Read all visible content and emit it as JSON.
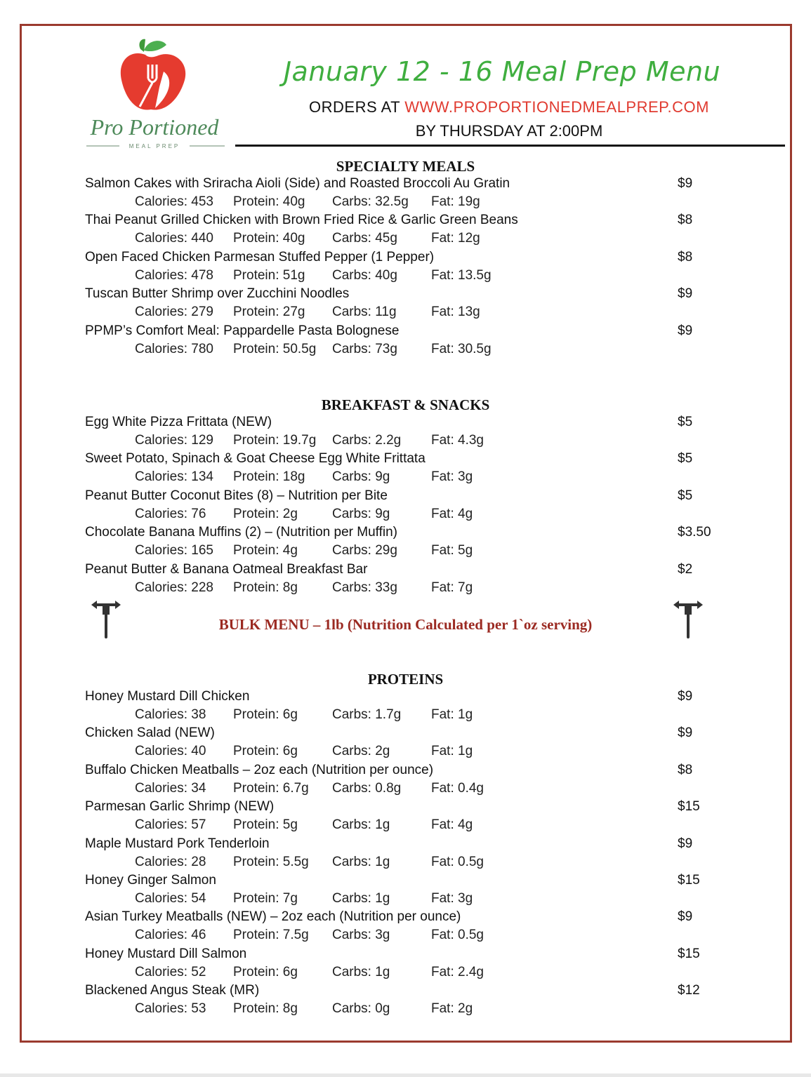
{
  "header": {
    "logo_text": "Pro Portioned",
    "logo_subtext": "MEAL PREP",
    "title": "January 12 - 16 Meal Prep Menu",
    "orders_prefix": "ORDERS AT ",
    "orders_url": "WWW.PROPORTIONEDMEALPREP.COM",
    "deadline": "BY THURSDAY AT 2:00PM"
  },
  "colors": {
    "title_green": "#3fae3f",
    "url_red": "#e03a2f",
    "border_brown": "#9b3a2e",
    "bulk_red": "#9b2a22"
  },
  "bulk_menu": "BULK MENU – 1lb (Nutrition Calculated per 1`oz serving)",
  "sections": [
    {
      "title": "SPECIALTY MEALS",
      "items": [
        {
          "name": "Salmon Cakes with Sriracha Aioli (Side) and Roasted Broccoli Au Gratin",
          "price": "$9",
          "calories": "Calories: 453",
          "protein": "Protein: 40g",
          "carbs": "Carbs: 32.5g",
          "fat": "Fat: 19g"
        },
        {
          "name": "Thai Peanut Grilled Chicken with Brown Fried Rice & Garlic Green Beans",
          "price": "$8",
          "calories": "Calories: 440",
          "protein": "Protein: 40g",
          "carbs": "Carbs: 45g",
          "fat": "Fat: 12g"
        },
        {
          "name": "Open Faced Chicken Parmesan Stuffed Pepper (1 Pepper)",
          "price": "$8",
          "calories": "Calories: 478",
          "protein": "Protein: 51g",
          "carbs": "Carbs: 40g",
          "fat": "Fat: 13.5g"
        },
        {
          "name": "Tuscan Butter Shrimp over Zucchini Noodles",
          "price": "$9",
          "calories": "Calories: 279",
          "protein": "Protein: 27g",
          "carbs": "Carbs: 11g",
          "fat": "Fat: 13g"
        },
        {
          "name": "PPMP’s Comfort Meal: Pappardelle Pasta Bolognese",
          "price": "$9",
          "calories": "Calories: 780",
          "protein": "Protein: 50.5g",
          "carbs": "Carbs: 73g",
          "fat": "Fat: 30.5g"
        }
      ]
    },
    {
      "title": "BREAKFAST & SNACKS",
      "items": [
        {
          "name": "Egg White Pizza Frittata (NEW)",
          "price": "$5",
          "calories": "Calories: 129",
          "protein": "Protein: 19.7g",
          "carbs": "Carbs: 2.2g",
          "fat": "Fat: 4.3g"
        },
        {
          "name": "Sweet Potato, Spinach & Goat Cheese Egg White Frittata",
          "price": "$5",
          "calories": "Calories: 134",
          "protein": "Protein: 18g",
          "carbs": "Carbs: 9g",
          "fat": "Fat: 3g"
        },
        {
          "name": "Peanut Butter Coconut Bites (8) – Nutrition per Bite",
          "price": "$5",
          "calories": "Calories: 76",
          "protein": "Protein: 2g",
          "carbs": "Carbs: 9g",
          "fat": "Fat: 4g"
        },
        {
          "name": "Chocolate Banana Muffins (2) – (Nutrition per Muffin)",
          "price": "$3.50",
          "calories": "Calories: 165",
          "protein": "Protein: 4g",
          "carbs": "Carbs: 29g",
          "fat": "Fat: 5g"
        },
        {
          "name": "Peanut Butter & Banana Oatmeal Breakfast Bar",
          "price": "$2",
          "calories": "Calories: 228",
          "protein": "Protein: 8g",
          "carbs": "Carbs: 33g",
          "fat": "Fat: 7g"
        }
      ]
    },
    {
      "title": "PROTEINS",
      "items": [
        {
          "name": "Honey Mustard Dill Chicken",
          "price": "$9",
          "calories": "Calories: 38",
          "protein": "Protein: 6g",
          "carbs": "Carbs: 1.7g",
          "fat": "Fat: 1g"
        },
        {
          "name": "Chicken Salad (NEW)",
          "price": "$9",
          "calories": "Calories: 40",
          "protein": "Protein: 6g",
          "carbs": "Carbs: 2g",
          "fat": "Fat: 1g"
        },
        {
          "name": "Buffalo Chicken Meatballs – 2oz each (Nutrition per ounce)",
          "price": "$8",
          "calories": "Calories: 34",
          "protein": "Protein: 6.7g",
          "carbs": "Carbs: 0.8g",
          "fat": "Fat: 0.4g"
        },
        {
          "name": "Parmesan Garlic Shrimp (NEW)",
          "price": "$15",
          "calories": "Calories: 57",
          "protein": "Protein: 5g",
          "carbs": "Carbs: 1g",
          "fat": "Fat: 4g"
        },
        {
          "name": "Maple Mustard Pork Tenderloin",
          "price": "$9",
          "calories": "Calories: 28",
          "protein": "Protein: 5.5g",
          "carbs": "Carbs: 1g",
          "fat": "Fat: 0.5g"
        },
        {
          "name": "Honey Ginger Salmon",
          "price": "$15",
          "calories": "Calories: 54",
          "protein": "Protein: 7g",
          "carbs": "Carbs: 1g",
          "fat": "Fat: 3g"
        },
        {
          "name": "Asian Turkey Meatballs (NEW) – 2oz each (Nutrition per ounce)",
          "price": "$9",
          "calories": "Calories: 46",
          "protein": "Protein: 7.5g",
          "carbs": "Carbs: 3g",
          "fat": "Fat: 0.5g"
        },
        {
          "name": "Honey Mustard Dill Salmon",
          "price": "$15",
          "calories": "Calories: 52",
          "protein": "Protein: 6g",
          "carbs": "Carbs: 1g",
          "fat": "Fat: 2.4g"
        },
        {
          "name": "Blackened Angus Steak (MR)",
          "price": "$12",
          "calories": "Calories: 53",
          "protein": "Protein: 8g",
          "carbs": "Carbs: 0g",
          "fat": "Fat: 2g"
        }
      ]
    }
  ]
}
